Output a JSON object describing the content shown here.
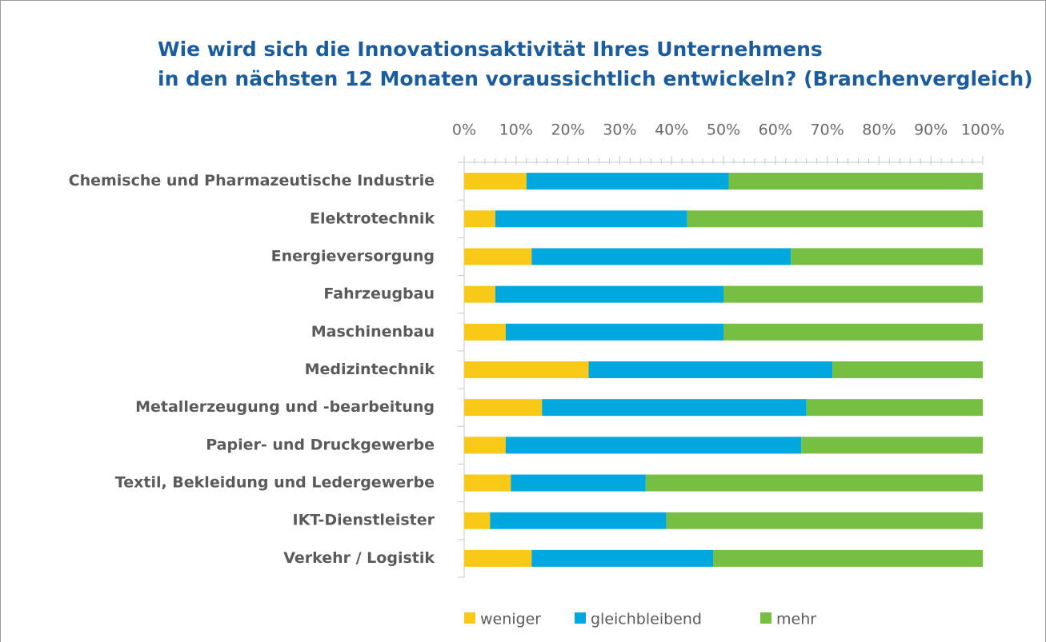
{
  "chart_data": {
    "type": "stacked_barh",
    "title": [
      "Wie wird sich die Innovationsaktivität Ihres Unternehmens",
      "in den nächsten 12 Monaten voraussichtlich entwickeln? (Branchenvergleich)"
    ],
    "categories": [
      "Chemische und Pharmazeutische Industrie",
      "Elektrotechnik",
      "Energieversorgung",
      "Fahrzeugbau",
      "Maschinenbau",
      "Medizintechnik",
      "Metallerzeugung und -bearbeitung",
      "Papier- und Druckgewerbe",
      "Textil, Bekleidung und Ledergewerbe",
      "IKT-Dienstleister",
      "Verkehr / Logistik"
    ],
    "series": [
      {
        "name": "weniger",
        "color": "#f9c917",
        "values": [
          12,
          6,
          13,
          6,
          8,
          24,
          15,
          8,
          9,
          5,
          13
        ]
      },
      {
        "name": "gleichbleibend",
        "color": "#00a8e0",
        "values": [
          39,
          37,
          50,
          44,
          42,
          47,
          51,
          57,
          26,
          34,
          35
        ]
      },
      {
        "name": "mehr",
        "color": "#76bf43",
        "values": [
          49,
          57,
          37,
          50,
          50,
          29,
          34,
          35,
          65,
          61,
          52
        ]
      }
    ],
    "xlim": [
      0,
      100
    ],
    "xticks": [
      {
        "value": 0,
        "label": "0%"
      },
      {
        "value": 10,
        "label": "10%"
      },
      {
        "value": 20,
        "label": "20%"
      },
      {
        "value": 30,
        "label": "30%"
      },
      {
        "value": 40,
        "label": "40%"
      },
      {
        "value": 50,
        "label": "50%"
      },
      {
        "value": 60,
        "label": "60%"
      },
      {
        "value": 70,
        "label": "70%"
      },
      {
        "value": 80,
        "label": "80%"
      },
      {
        "value": 90,
        "label": "90%"
      },
      {
        "value": 100,
        "label": "100%"
      }
    ],
    "minor_xticks": [
      2,
      4,
      6,
      8,
      12,
      14,
      16,
      18,
      22,
      24,
      26,
      28,
      32,
      34,
      36,
      38,
      42,
      44,
      46,
      48,
      52,
      54,
      56,
      58,
      62,
      64,
      66,
      68,
      72,
      74,
      76,
      78,
      82,
      84,
      86,
      88,
      92,
      94,
      96,
      98
    ],
    "legend": "bottom"
  }
}
